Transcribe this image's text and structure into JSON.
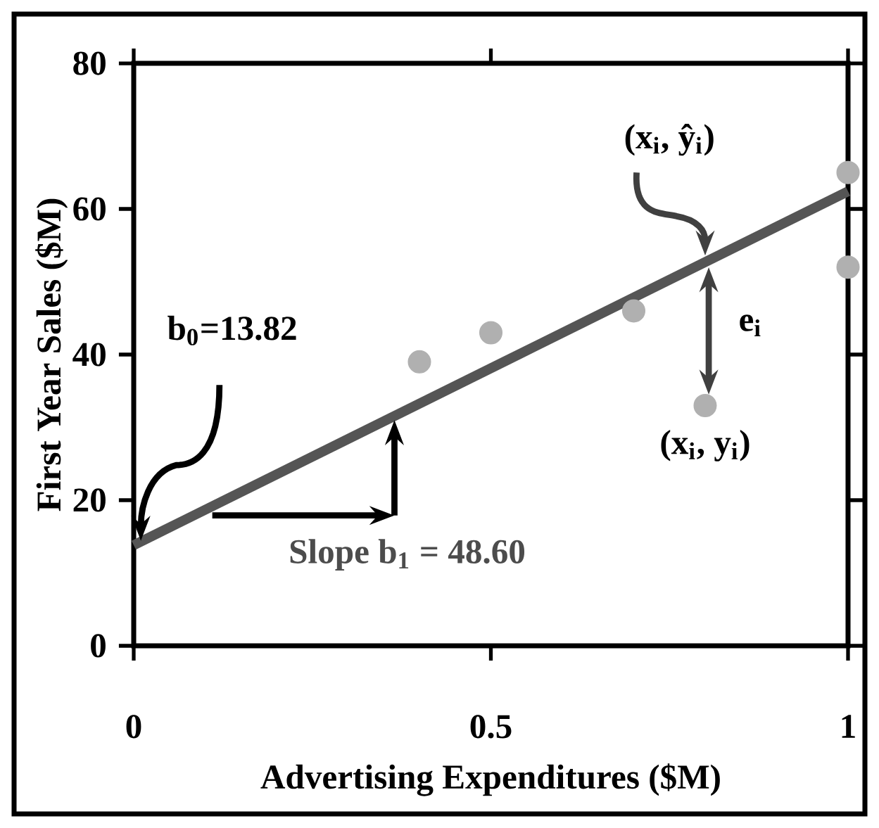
{
  "chart_data": {
    "type": "scatter",
    "xlabel": "Advertising Expenditures ($M)",
    "ylabel": "First Year Sales ($M)",
    "xlim": [
      0,
      1
    ],
    "ylim": [
      0,
      80
    ],
    "xticks": [
      0,
      0.5,
      1
    ],
    "yticks": [
      0,
      20,
      40,
      60,
      80
    ],
    "grid": false,
    "series": [
      {
        "type": "scatter",
        "color": "#b0b0b0",
        "x": [
          0.4,
          0.5,
          0.7,
          0.8,
          1.0,
          1.0
        ],
        "values": [
          39,
          43,
          46,
          33,
          65,
          52
        ]
      },
      {
        "type": "line",
        "color": "#555555",
        "line_style": "solid",
        "x": [
          0,
          1
        ],
        "values": [
          13.82,
          62.42
        ]
      }
    ],
    "annotations": [
      "b$_{0}$=13.82",
      "Slope b$_{1}$ = 48.60",
      "(x$_{i}$, ŷ$_{i}$)",
      "e$_{i}$",
      "(x$_{i}$, y$_{i}$)"
    ]
  }
}
